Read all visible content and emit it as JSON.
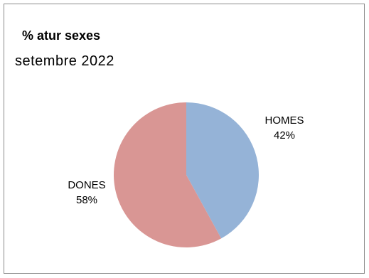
{
  "chart_data": {
    "type": "pie",
    "title": "% atur sexes",
    "subtitle": "setembre 2022",
    "categories": [
      "HOMES",
      "DONES"
    ],
    "values": [
      42,
      58
    ],
    "value_labels": [
      "42%",
      "58%"
    ],
    "colors": [
      "#95b3d7",
      "#d99694"
    ],
    "legend": "none"
  }
}
